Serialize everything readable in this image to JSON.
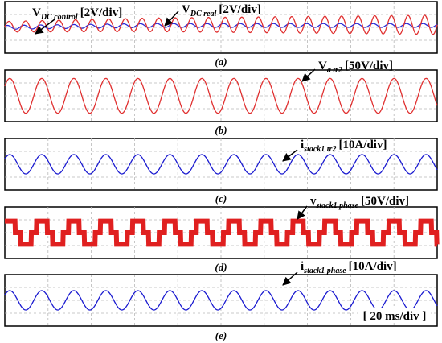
{
  "chart_data": [
    {
      "type": "line",
      "caption": "(a)",
      "signals": [
        {
          "name_main": "V",
          "name_sub": "DC_control",
          "scale": "[2V/div]",
          "color": "#2b2bd6",
          "waveform": "sine",
          "cycles": 26,
          "amplitude_div": 0.15,
          "offset_div": 0.0,
          "drift_div": [
            0.0,
            0.15
          ]
        },
        {
          "name_main": "V",
          "name_sub": "DC_real",
          "scale": "[2V/div]",
          "color": "#e03030",
          "waveform": "sine",
          "cycles": 26,
          "amplitude_div": 0.75,
          "offset_div": 0.05,
          "drift_div": [
            0.0,
            0.15
          ]
        }
      ]
    },
    {
      "type": "line",
      "caption": "(b)",
      "signals": [
        {
          "name_main": "V",
          "name_sub": "a_tr2",
          "scale": "[50V/div]",
          "color": "#e03030",
          "waveform": "sine",
          "cycles": 13.5,
          "amplitude_div": 1.35,
          "offset_div": 0.0
        }
      ]
    },
    {
      "type": "line",
      "caption": "(c)",
      "signals": [
        {
          "name_main": "i",
          "name_sub": "stack1_tr2",
          "scale": "[10A/div]",
          "color": "#1a1ad0",
          "waveform": "sine",
          "cycles": 13.5,
          "amplitude_div": 0.75,
          "offset_div": 0.0
        }
      ]
    },
    {
      "type": "line",
      "caption": "(d)",
      "signals": [
        {
          "name_main": "v",
          "name_sub": "stack1_phase",
          "scale": "[50V/div]",
          "color": "#e02020",
          "waveform": "staircase",
          "cycles": 13.5,
          "levels": [
            -1,
            0,
            1
          ],
          "amplitude_div": 0.9,
          "offset_div": 0.0
        }
      ]
    },
    {
      "type": "line",
      "caption": "(e)",
      "signals": [
        {
          "name_main": "i",
          "name_sub": "stack1_phase",
          "scale": "[10A/div]",
          "color": "#1a1ad0",
          "waveform": "sine",
          "cycles": 13.5,
          "amplitude_div": 0.75,
          "offset_div": 0.0
        }
      ]
    }
  ],
  "timebase": "[ 20 ms/div ]",
  "grid": {
    "on": true,
    "x_div": 10,
    "y_div": 4,
    "style": "dashed",
    "color": "#b8b8b8"
  }
}
